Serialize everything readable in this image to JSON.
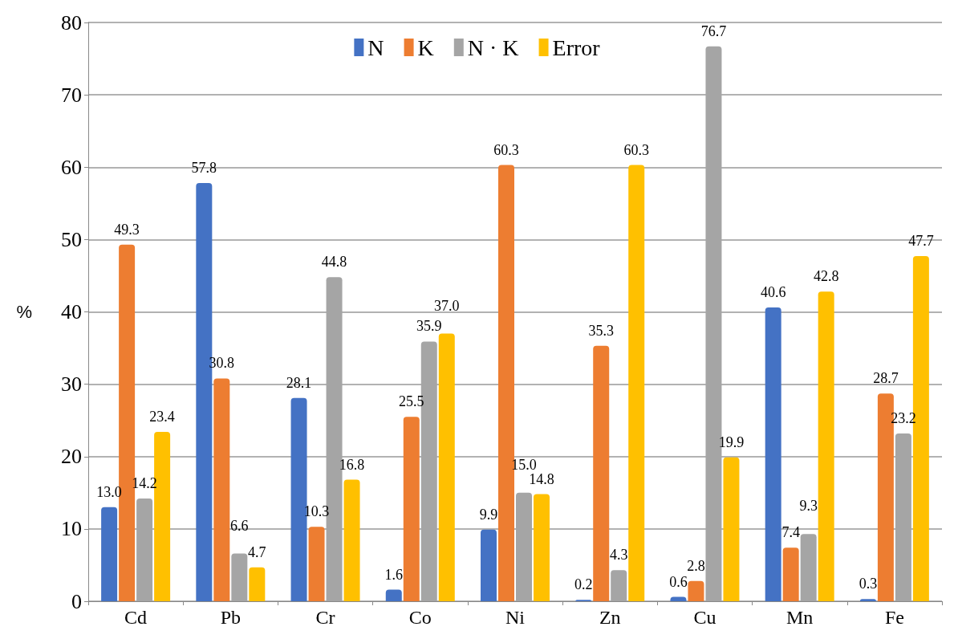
{
  "chart_data": {
    "type": "bar",
    "ylabel": "%",
    "categories": [
      "Cd",
      "Pb",
      "Cr",
      "Co",
      "Ni",
      "Zn",
      "Cu",
      "Mn",
      "Fe"
    ],
    "series": [
      {
        "name": "N",
        "color": "#4472c4",
        "values": [
          13.0,
          57.8,
          28.1,
          1.6,
          9.9,
          0.2,
          0.6,
          40.6,
          0.3
        ],
        "value_labels": [
          "13.0",
          "57.8",
          "28.1",
          "1.6",
          "9.9",
          "0.2",
          "0.6",
          "40.6",
          "0.3"
        ]
      },
      {
        "name": "K",
        "color": "#ed7d31",
        "values": [
          49.3,
          30.8,
          10.3,
          25.5,
          60.3,
          35.3,
          2.8,
          7.4,
          28.7
        ],
        "value_labels": [
          "49.3",
          "30.8",
          "10.3",
          "25.5",
          "60.3",
          "35.3",
          "2.8",
          "7.4",
          "28.7"
        ]
      },
      {
        "name": "N · K",
        "color": "#a5a5a5",
        "values": [
          14.2,
          6.6,
          44.8,
          35.9,
          15.0,
          4.3,
          76.7,
          9.3,
          23.2
        ],
        "value_labels": [
          "14.2",
          "6.6",
          "44.8",
          "35.9",
          "15.0",
          "4.3",
          "76.7",
          "9.3",
          "23.2"
        ]
      },
      {
        "name": "Error",
        "color": "#ffc000",
        "values": [
          23.4,
          4.7,
          16.8,
          37.0,
          14.8,
          60.3,
          19.9,
          42.8,
          47.7
        ],
        "value_labels": [
          "23.4",
          "4.7",
          "16.8",
          "37.0",
          "14.8",
          "60.3",
          "19.9",
          "42.8",
          "47.7"
        ]
      }
    ],
    "ylim": [
      0,
      80
    ],
    "yticks": [
      0,
      10,
      20,
      30,
      40,
      50,
      60,
      70,
      80
    ],
    "grid": "y",
    "legend": "top"
  }
}
